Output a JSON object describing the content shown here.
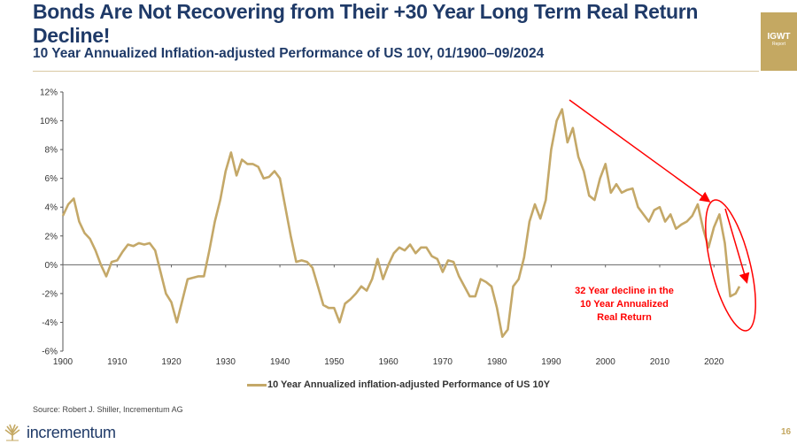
{
  "header": {
    "title": "Bonds Are Not Recovering from Their +30 Year Long Term Real Return Decline!",
    "subtitle": "10 Year Annualized Inflation-adjusted Performance of US 10Y, 01/1900–09/2024",
    "badge_main": "IGWT",
    "badge_sub": "Report"
  },
  "annotation": {
    "line1": "32 Year decline in the",
    "line2": "10 Year Annualized",
    "line3": "Real Return"
  },
  "footer": {
    "source": "Source: Robert J. Shiller, Incrementum AG",
    "logo_text": "incrementum",
    "page_number": "16"
  },
  "colors": {
    "series": "#c4a868",
    "annotation": "#ff0000",
    "title": "#1f3a68"
  },
  "chart_data": {
    "type": "line",
    "title": "",
    "xlabel": "",
    "ylabel": "",
    "xlim": [
      1900,
      2026
    ],
    "ylim": [
      -6,
      12
    ],
    "x_ticks": [
      1900,
      1910,
      1920,
      1930,
      1940,
      1950,
      1960,
      1970,
      1980,
      1990,
      2000,
      2010,
      2020
    ],
    "y_ticks": [
      -6,
      -4,
      -2,
      0,
      2,
      4,
      6,
      8,
      10,
      12
    ],
    "y_tick_labels": [
      "-6%",
      "-4%",
      "-2%",
      "0%",
      "2%",
      "4%",
      "6%",
      "8%",
      "10%",
      "12%"
    ],
    "grid": false,
    "legend": "bottom",
    "series": [
      {
        "name": "10 Year Annualized inflation-adjusted Performance of US 10Y",
        "x": [
          1900,
          1901,
          1902,
          1903,
          1904,
          1905,
          1906,
          1907,
          1908,
          1909,
          1910,
          1911,
          1912,
          1913,
          1914,
          1915,
          1916,
          1917,
          1918,
          1919,
          1920,
          1921,
          1922,
          1923,
          1924,
          1925,
          1926,
          1927,
          1928,
          1929,
          1930,
          1931,
          1932,
          1933,
          1934,
          1935,
          1936,
          1937,
          1938,
          1939,
          1940,
          1941,
          1942,
          1943,
          1944,
          1945,
          1946,
          1947,
          1948,
          1949,
          1950,
          1951,
          1952,
          1953,
          1954,
          1955,
          1956,
          1957,
          1958,
          1959,
          1960,
          1961,
          1962,
          1963,
          1964,
          1965,
          1966,
          1967,
          1968,
          1969,
          1970,
          1971,
          1972,
          1973,
          1974,
          1975,
          1976,
          1977,
          1978,
          1979,
          1980,
          1981,
          1982,
          1983,
          1984,
          1985,
          1986,
          1987,
          1988,
          1989,
          1990,
          1991,
          1992,
          1993,
          1994,
          1995,
          1996,
          1997,
          1998,
          1999,
          2000,
          2001,
          2002,
          2003,
          2004,
          2005,
          2006,
          2007,
          2008,
          2009,
          2010,
          2011,
          2012,
          2013,
          2014,
          2015,
          2016,
          2017,
          2018,
          2019,
          2020,
          2021,
          2022,
          2023,
          2024,
          2024.7
        ],
        "values": [
          3.4,
          4.2,
          4.6,
          3.0,
          2.2,
          1.8,
          1.0,
          0.0,
          -0.8,
          0.2,
          0.3,
          0.9,
          1.4,
          1.3,
          1.5,
          1.4,
          1.5,
          1.0,
          -0.5,
          -2.0,
          -2.6,
          -4.0,
          -2.5,
          -1.0,
          -0.9,
          -0.8,
          -0.8,
          1.0,
          3.0,
          4.5,
          6.5,
          7.8,
          6.2,
          7.3,
          7.0,
          7.0,
          6.8,
          6.0,
          6.1,
          6.5,
          6.0,
          4.0,
          2.0,
          0.2,
          0.3,
          0.2,
          -0.2,
          -1.5,
          -2.8,
          -3.0,
          -3.0,
          -4.0,
          -2.7,
          -2.4,
          -2.0,
          -1.5,
          -1.8,
          -1.0,
          0.4,
          -1.0,
          0.0,
          0.8,
          1.2,
          1.0,
          1.4,
          0.8,
          1.2,
          1.2,
          0.6,
          0.4,
          -0.5,
          0.3,
          0.2,
          -0.8,
          -1.5,
          -2.2,
          -2.2,
          -1.0,
          -1.2,
          -1.5,
          -3.0,
          -5.0,
          -4.5,
          -1.5,
          -1.0,
          0.5,
          3.0,
          4.2,
          3.2,
          4.5,
          8.0,
          10.0,
          10.8,
          8.5,
          9.5,
          7.5,
          6.5,
          4.8,
          4.5,
          6.0,
          7.0,
          5.0,
          5.6,
          5.0,
          5.2,
          5.3,
          4.0,
          3.5,
          3.0,
          3.8,
          4.0,
          3.0,
          3.5,
          2.5,
          2.8,
          3.0,
          3.4,
          4.2,
          2.5,
          1.2,
          2.6,
          3.5,
          1.5,
          -2.2,
          -2.0,
          -1.5
        ]
      }
    ]
  }
}
